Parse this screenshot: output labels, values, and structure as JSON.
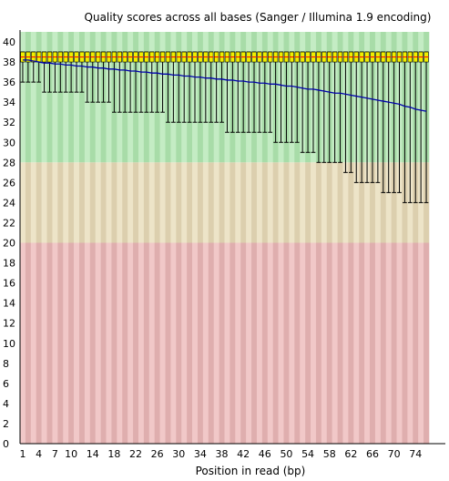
{
  "chart_data": {
    "type": "boxplot",
    "title": "Quality scores across all bases (Sanger / Illumina 1.9 encoding)",
    "xlabel": "Position in read (bp)",
    "ylabel": "",
    "ylim": [
      0,
      41
    ],
    "yticks": [
      0,
      2,
      4,
      6,
      8,
      10,
      12,
      14,
      16,
      18,
      20,
      22,
      24,
      26,
      28,
      30,
      32,
      34,
      36,
      38,
      40
    ],
    "xtick_labels": [
      "1",
      "4",
      "7",
      "10",
      "14",
      "18",
      "22",
      "26",
      "30",
      "34",
      "38",
      "42",
      "46",
      "50",
      "54",
      "58",
      "62",
      "66",
      "70",
      "74"
    ],
    "grid": false,
    "legend": "none",
    "zones": [
      {
        "name": "good",
        "from": 28,
        "to": 41,
        "color_light": "#c4ecc4",
        "color_dark": "#a8dca8"
      },
      {
        "name": "reasonable",
        "from": 20,
        "to": 28,
        "color_light": "#ede4c8",
        "color_dark": "#dccfae"
      },
      {
        "name": "poor",
        "from": 0,
        "to": 20,
        "color_light": "#f1c8c8",
        "color_dark": "#dfaeae"
      }
    ],
    "colors": {
      "box": "#eeee00",
      "median": "#ff0000",
      "mean_line": "#0000aa",
      "whisker": "#000000"
    },
    "positions": [
      1,
      2,
      3,
      4,
      5,
      6,
      7,
      8,
      9,
      10,
      11,
      12,
      13,
      14,
      15,
      16,
      17,
      18,
      19,
      20,
      21,
      22,
      23,
      24,
      25,
      26,
      27,
      28,
      29,
      30,
      31,
      32,
      33,
      34,
      35,
      36,
      37,
      38,
      39,
      40,
      41,
      42,
      43,
      44,
      45,
      46,
      47,
      48,
      49,
      50,
      51,
      52,
      53,
      54,
      55,
      56,
      57,
      58,
      59,
      60,
      61,
      62,
      63,
      64,
      65,
      66,
      67,
      68,
      69,
      70,
      71,
      72,
      73,
      74,
      75,
      76
    ],
    "whisker_low": [
      36,
      36,
      36,
      36,
      35,
      35,
      35,
      35,
      35,
      35,
      35,
      35,
      34,
      34,
      34,
      34,
      34,
      33,
      33,
      33,
      33,
      33,
      33,
      33,
      33,
      33,
      33,
      32,
      32,
      32,
      32,
      32,
      32,
      32,
      32,
      32,
      32,
      32,
      31,
      31,
      31,
      31,
      31,
      31,
      31,
      31,
      31,
      30,
      30,
      30,
      30,
      30,
      29,
      29,
      29,
      28,
      28,
      28,
      28,
      28,
      27,
      27,
      26,
      26,
      26,
      26,
      26,
      25,
      25,
      25,
      25,
      24,
      24,
      24,
      24,
      24
    ],
    "q1": [
      38,
      38,
      38,
      38,
      38,
      38,
      38,
      38,
      38,
      38,
      38,
      38,
      38,
      38,
      38,
      38,
      38,
      38,
      38,
      38,
      38,
      38,
      38,
      38,
      38,
      38,
      38,
      38,
      38,
      38,
      38,
      38,
      38,
      38,
      38,
      38,
      38,
      38,
      38,
      38,
      38,
      38,
      38,
      38,
      38,
      38,
      38,
      38,
      38,
      38,
      38,
      38,
      38,
      38,
      38,
      38,
      38,
      38,
      38,
      38,
      38,
      38,
      38,
      38,
      38,
      38,
      38,
      38,
      38,
      38,
      38,
      38,
      38,
      38,
      38,
      38
    ],
    "median": [
      38.5,
      38.5,
      38.5,
      38.5,
      38.5,
      38.5,
      38.5,
      38.5,
      38.5,
      38.5,
      38.5,
      38.5,
      38.5,
      38.5,
      38.5,
      38.5,
      38.5,
      38.5,
      38.5,
      38.5,
      38.5,
      38.5,
      38.5,
      38.5,
      38.5,
      38.5,
      38.5,
      38.5,
      38.5,
      38.5,
      38.5,
      38.5,
      38.5,
      38.5,
      38.5,
      38.5,
      38.5,
      38.5,
      38.5,
      38.5,
      38.5,
      38.5,
      38.5,
      38.5,
      38.5,
      38.5,
      38.5,
      38.5,
      38.5,
      38.5,
      38.5,
      38.5,
      38.5,
      38.5,
      38.5,
      38.5,
      38.5,
      38.5,
      38.5,
      38.5,
      38.5,
      38.5,
      38.5,
      38.5,
      38.5,
      38.5,
      38.5,
      38.5,
      38.5,
      38.5,
      38.5,
      38.5,
      38.5,
      38.5,
      38.5,
      38.5
    ],
    "q3": [
      39,
      39,
      39,
      39,
      39,
      39,
      39,
      39,
      39,
      39,
      39,
      39,
      39,
      39,
      39,
      39,
      39,
      39,
      39,
      39,
      39,
      39,
      39,
      39,
      39,
      39,
      39,
      39,
      39,
      39,
      39,
      39,
      39,
      39,
      39,
      39,
      39,
      39,
      39,
      39,
      39,
      39,
      39,
      39,
      39,
      39,
      39,
      39,
      39,
      39,
      39,
      39,
      39,
      39,
      39,
      39,
      39,
      39,
      39,
      39,
      39,
      39,
      39,
      39,
      39,
      39,
      39,
      39,
      39,
      39,
      39,
      39,
      39,
      39,
      39,
      39
    ],
    "whisker_high": [
      39,
      39,
      39,
      39,
      39,
      39,
      39,
      39,
      39,
      39,
      39,
      39,
      39,
      39,
      39,
      39,
      39,
      39,
      39,
      39,
      39,
      39,
      39,
      39,
      39,
      39,
      39,
      39,
      39,
      39,
      39,
      39,
      39,
      39,
      39,
      39,
      39,
      39,
      39,
      39,
      39,
      39,
      39,
      39,
      39,
      39,
      39,
      39,
      39,
      39,
      39,
      39,
      39,
      39,
      39,
      39,
      39,
      39,
      39,
      39,
      39,
      39,
      39,
      39,
      39,
      39,
      39,
      39,
      39,
      39,
      39,
      39,
      39,
      39,
      39,
      39
    ],
    "mean": [
      38.2,
      38.2,
      38.1,
      38.0,
      37.9,
      37.9,
      37.8,
      37.8,
      37.7,
      37.7,
      37.6,
      37.6,
      37.5,
      37.5,
      37.4,
      37.4,
      37.3,
      37.3,
      37.2,
      37.2,
      37.1,
      37.1,
      37.0,
      37.0,
      36.9,
      36.9,
      36.8,
      36.8,
      36.7,
      36.7,
      36.6,
      36.6,
      36.5,
      36.5,
      36.4,
      36.4,
      36.3,
      36.3,
      36.2,
      36.2,
      36.1,
      36.1,
      36.0,
      36.0,
      35.9,
      35.9,
      35.8,
      35.8,
      35.7,
      35.6,
      35.6,
      35.5,
      35.4,
      35.3,
      35.3,
      35.2,
      35.1,
      35.0,
      34.9,
      34.9,
      34.8,
      34.7,
      34.6,
      34.5,
      34.4,
      34.3,
      34.2,
      34.1,
      34.0,
      33.9,
      33.8,
      33.6,
      33.5,
      33.3,
      33.2,
      33.1
    ]
  }
}
